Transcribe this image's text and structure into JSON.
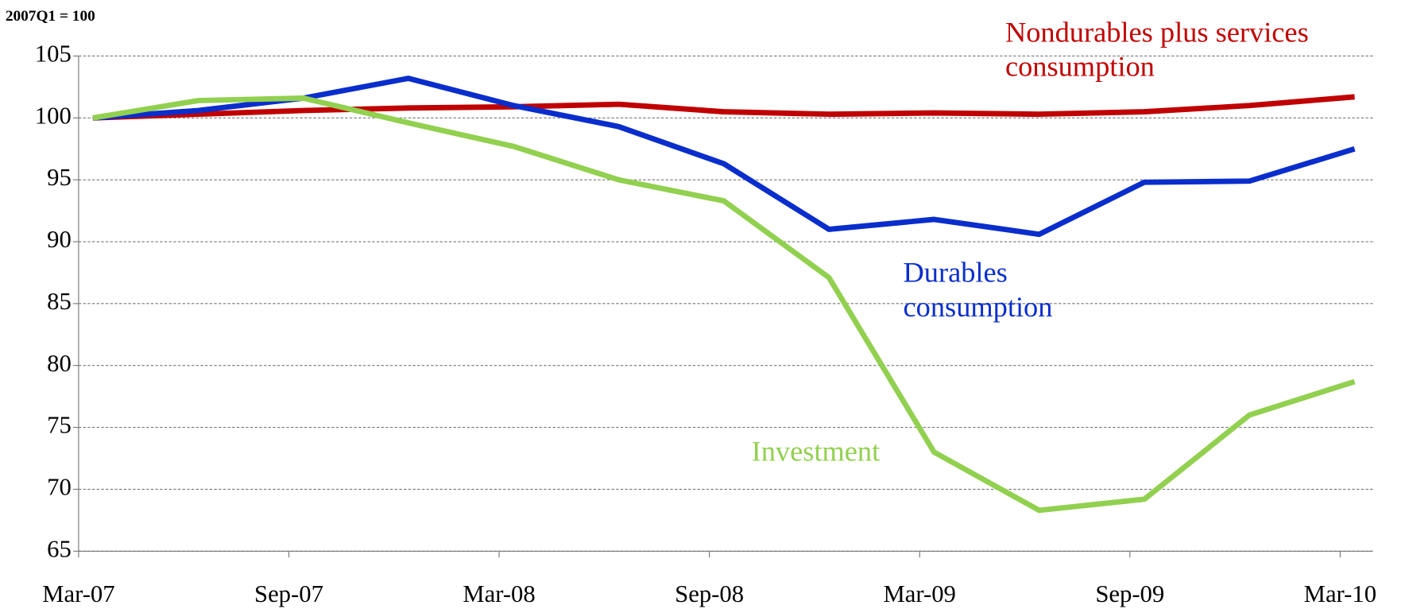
{
  "chart_data": {
    "type": "line",
    "y_label": "2007Q1 = 100",
    "categories": [
      "Mar-07",
      null,
      "Sep-07",
      null,
      "Mar-08",
      null,
      "Sep-08",
      null,
      "Mar-09",
      null,
      "Sep-09",
      null,
      "Mar-10"
    ],
    "series": [
      {
        "name": "Nondurables plus services consumption",
        "color": "#c00000",
        "values": [
          100,
          100.3,
          100.6,
          100.8,
          100.9,
          101.1,
          100.5,
          100.3,
          100.4,
          100.3,
          100.5,
          101.0,
          101.7
        ]
      },
      {
        "name": "Durables consumption",
        "color": "#0a2ecc",
        "values": [
          100,
          100.6,
          101.6,
          103.2,
          101.0,
          99.3,
          96.3,
          91.0,
          91.8,
          90.6,
          94.8,
          94.9,
          97.5
        ]
      },
      {
        "name": "Investment",
        "color": "#92d050",
        "values": [
          100,
          101.4,
          101.6,
          99.6,
          97.7,
          95.0,
          93.3,
          87.1,
          73.0,
          68.3,
          69.2,
          76.0,
          78.7
        ]
      }
    ],
    "ylim": [
      65,
      105
    ],
    "yticks": [
      65,
      70,
      75,
      80,
      85,
      90,
      95,
      100,
      105
    ],
    "grid": true
  }
}
